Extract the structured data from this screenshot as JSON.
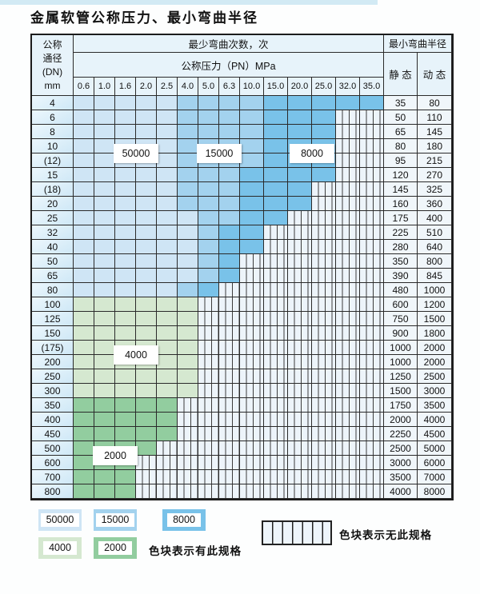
{
  "page": {
    "title": "金属软管公称压力、最小弯曲半径"
  },
  "table": {
    "header": {
      "dn_lines": [
        "公称",
        "通径",
        "(DN)",
        "mm"
      ],
      "cycles_title": "最少弯曲次数，次",
      "pressure_title": "公称压力（PN）MPa",
      "radius_title": "最小弯曲半径",
      "static_label": "静 态",
      "dynamic_label": "动 态",
      "pressures": [
        "0.6",
        "1.0",
        "1.6",
        "2.0",
        "2.5",
        "4.0",
        "5.0",
        "6.3",
        "10.0",
        "15.0",
        "20.0",
        "25.0",
        "32.0",
        "35.0"
      ]
    },
    "zones": {
      "z50000": {
        "label": "50000",
        "color": "#cfe5f5"
      },
      "z15000": {
        "label": "15000",
        "color": "#a3d2ee"
      },
      "z8000": {
        "label": "8000",
        "color": "#79c2e9"
      },
      "z4000": {
        "label": "4000",
        "color": "#d5e8d0"
      },
      "z2000": {
        "label": "2000",
        "color": "#92cd9f"
      },
      "none": {
        "label": "无此规格",
        "color": "hatch"
      }
    },
    "rows": [
      {
        "dn": "4",
        "static": "35",
        "dynamic": "80",
        "cells": [
          "z50000",
          "z50000",
          "z50000",
          "z50000",
          "z50000",
          "z15000",
          "z15000",
          "z15000",
          "z15000",
          "z8000",
          "z8000",
          "z8000",
          "z8000",
          "z8000"
        ]
      },
      {
        "dn": "6",
        "static": "50",
        "dynamic": "110",
        "cells": [
          "z50000",
          "z50000",
          "z50000",
          "z50000",
          "z50000",
          "z15000",
          "z15000",
          "z15000",
          "z15000",
          "z8000",
          "z8000",
          "z8000",
          "none",
          "none"
        ]
      },
      {
        "dn": "8",
        "static": "65",
        "dynamic": "145",
        "cells": [
          "z50000",
          "z50000",
          "z50000",
          "z50000",
          "z50000",
          "z15000",
          "z15000",
          "z15000",
          "z15000",
          "z8000",
          "z8000",
          "z8000",
          "none",
          "none"
        ]
      },
      {
        "dn": "10",
        "static": "80",
        "dynamic": "180",
        "cells": [
          "z50000",
          "z50000",
          "z50000",
          "z50000",
          "z50000",
          "z15000",
          "z15000",
          "z15000",
          "z15000",
          "z8000",
          "z8000",
          "z8000",
          "none",
          "none"
        ]
      },
      {
        "dn": "(12)",
        "static": "95",
        "dynamic": "215",
        "cells": [
          "z50000",
          "z50000",
          "z50000",
          "z50000",
          "z50000",
          "z15000",
          "z15000",
          "z15000",
          "z15000",
          "z8000",
          "z8000",
          "z8000",
          "none",
          "none"
        ]
      },
      {
        "dn": "15",
        "static": "120",
        "dynamic": "270",
        "cells": [
          "z50000",
          "z50000",
          "z50000",
          "z50000",
          "z50000",
          "z15000",
          "z15000",
          "z15000",
          "z8000",
          "z8000",
          "z8000",
          "z8000",
          "none",
          "none"
        ]
      },
      {
        "dn": "(18)",
        "static": "145",
        "dynamic": "325",
        "cells": [
          "z50000",
          "z50000",
          "z50000",
          "z50000",
          "z50000",
          "z15000",
          "z15000",
          "z15000",
          "z8000",
          "z8000",
          "z8000",
          "none",
          "none",
          "none"
        ]
      },
      {
        "dn": "20",
        "static": "160",
        "dynamic": "360",
        "cells": [
          "z50000",
          "z50000",
          "z50000",
          "z50000",
          "z50000",
          "z15000",
          "z15000",
          "z15000",
          "z8000",
          "z8000",
          "z8000",
          "none",
          "none",
          "none"
        ]
      },
      {
        "dn": "25",
        "static": "175",
        "dynamic": "400",
        "cells": [
          "z50000",
          "z50000",
          "z50000",
          "z50000",
          "z50000",
          "z50000",
          "z15000",
          "z15000",
          "z8000",
          "z8000",
          "none",
          "none",
          "none",
          "none"
        ]
      },
      {
        "dn": "32",
        "static": "225",
        "dynamic": "510",
        "cells": [
          "z50000",
          "z50000",
          "z50000",
          "z50000",
          "z50000",
          "z50000",
          "z15000",
          "z8000",
          "z8000",
          "none",
          "none",
          "none",
          "none",
          "none"
        ]
      },
      {
        "dn": "40",
        "static": "280",
        "dynamic": "640",
        "cells": [
          "z50000",
          "z50000",
          "z50000",
          "z50000",
          "z50000",
          "z50000",
          "z15000",
          "z8000",
          "z8000",
          "none",
          "none",
          "none",
          "none",
          "none"
        ]
      },
      {
        "dn": "50",
        "static": "350",
        "dynamic": "800",
        "cells": [
          "z50000",
          "z50000",
          "z50000",
          "z50000",
          "z50000",
          "z50000",
          "z15000",
          "z8000",
          "none",
          "none",
          "none",
          "none",
          "none",
          "none"
        ]
      },
      {
        "dn": "65",
        "static": "390",
        "dynamic": "845",
        "cells": [
          "z50000",
          "z50000",
          "z50000",
          "z50000",
          "z50000",
          "z50000",
          "z15000",
          "z8000",
          "none",
          "none",
          "none",
          "none",
          "none",
          "none"
        ]
      },
      {
        "dn": "80",
        "static": "480",
        "dynamic": "1000",
        "cells": [
          "z50000",
          "z50000",
          "z50000",
          "z50000",
          "z50000",
          "z15000",
          "z8000",
          "none",
          "none",
          "none",
          "none",
          "none",
          "none",
          "none"
        ]
      },
      {
        "dn": "100",
        "static": "600",
        "dynamic": "1200",
        "cells": [
          "z4000",
          "z4000",
          "z4000",
          "z4000",
          "z4000",
          "z4000",
          "none",
          "none",
          "none",
          "none",
          "none",
          "none",
          "none",
          "none"
        ]
      },
      {
        "dn": "125",
        "static": "750",
        "dynamic": "1500",
        "cells": [
          "z4000",
          "z4000",
          "z4000",
          "z4000",
          "z4000",
          "z4000",
          "none",
          "none",
          "none",
          "none",
          "none",
          "none",
          "none",
          "none"
        ]
      },
      {
        "dn": "150",
        "static": "900",
        "dynamic": "1800",
        "cells": [
          "z4000",
          "z4000",
          "z4000",
          "z4000",
          "z4000",
          "z4000",
          "none",
          "none",
          "none",
          "none",
          "none",
          "none",
          "none",
          "none"
        ]
      },
      {
        "dn": "(175)",
        "static": "1000",
        "dynamic": "2000",
        "cells": [
          "z4000",
          "z4000",
          "z4000",
          "z4000",
          "z4000",
          "z4000",
          "none",
          "none",
          "none",
          "none",
          "none",
          "none",
          "none",
          "none"
        ]
      },
      {
        "dn": "200",
        "static": "1000",
        "dynamic": "2000",
        "cells": [
          "z4000",
          "z4000",
          "z4000",
          "z4000",
          "z4000",
          "z4000",
          "none",
          "none",
          "none",
          "none",
          "none",
          "none",
          "none",
          "none"
        ]
      },
      {
        "dn": "250",
        "static": "1250",
        "dynamic": "2500",
        "cells": [
          "z4000",
          "z4000",
          "z4000",
          "z4000",
          "z4000",
          "z4000",
          "none",
          "none",
          "none",
          "none",
          "none",
          "none",
          "none",
          "none"
        ]
      },
      {
        "dn": "300",
        "static": "1500",
        "dynamic": "3000",
        "cells": [
          "z4000",
          "z4000",
          "z4000",
          "z4000",
          "z4000",
          "z4000",
          "none",
          "none",
          "none",
          "none",
          "none",
          "none",
          "none",
          "none"
        ]
      },
      {
        "dn": "350",
        "static": "1750",
        "dynamic": "3500",
        "cells": [
          "z2000",
          "z2000",
          "z2000",
          "z2000",
          "z2000",
          "none",
          "none",
          "none",
          "none",
          "none",
          "none",
          "none",
          "none",
          "none"
        ]
      },
      {
        "dn": "400",
        "static": "2000",
        "dynamic": "4000",
        "cells": [
          "z2000",
          "z2000",
          "z2000",
          "z2000",
          "z2000",
          "none",
          "none",
          "none",
          "none",
          "none",
          "none",
          "none",
          "none",
          "none"
        ]
      },
      {
        "dn": "450",
        "static": "2250",
        "dynamic": "4500",
        "cells": [
          "z2000",
          "z2000",
          "z2000",
          "z2000",
          "z2000",
          "none",
          "none",
          "none",
          "none",
          "none",
          "none",
          "none",
          "none",
          "none"
        ]
      },
      {
        "dn": "500",
        "static": "2500",
        "dynamic": "5000",
        "cells": [
          "z2000",
          "z2000",
          "z2000",
          "z2000",
          "none",
          "none",
          "none",
          "none",
          "none",
          "none",
          "none",
          "none",
          "none",
          "none"
        ]
      },
      {
        "dn": "600",
        "static": "3000",
        "dynamic": "6000",
        "cells": [
          "z2000",
          "z2000",
          "z2000",
          "none",
          "none",
          "none",
          "none",
          "none",
          "none",
          "none",
          "none",
          "none",
          "none",
          "none"
        ]
      },
      {
        "dn": "700",
        "static": "3500",
        "dynamic": "7000",
        "cells": [
          "z2000",
          "z2000",
          "z2000",
          "none",
          "none",
          "none",
          "none",
          "none",
          "none",
          "none",
          "none",
          "none",
          "none",
          "none"
        ]
      },
      {
        "dn": "800",
        "static": "4000",
        "dynamic": "8000",
        "cells": [
          "z2000",
          "z2000",
          "z2000",
          "none",
          "none",
          "none",
          "none",
          "none",
          "none",
          "none",
          "none",
          "none",
          "none",
          "none"
        ]
      }
    ],
    "labels": [
      {
        "text": "50000",
        "col_boundary": 3,
        "row_boundary": 4
      },
      {
        "text": "15000",
        "col_boundary": 7,
        "row_boundary": 4
      },
      {
        "text": "8000",
        "col_boundary": 11,
        "row_boundary": 4
      },
      {
        "text": "4000",
        "col_boundary": 3,
        "row_boundary": 18
      },
      {
        "text": "2000",
        "col_boundary": 2,
        "row_boundary": 25
      }
    ]
  },
  "legend": {
    "swatches": [
      {
        "value": "50000",
        "zone": "z50000"
      },
      {
        "value": "15000",
        "zone": "z15000"
      },
      {
        "value": "8000",
        "zone": "z8000"
      },
      {
        "value": "4000",
        "zone": "z4000"
      },
      {
        "value": "2000",
        "zone": "z2000"
      }
    ],
    "has_spec_text": "色块表示有此规格",
    "no_spec_text": "色块表示无此规格"
  }
}
